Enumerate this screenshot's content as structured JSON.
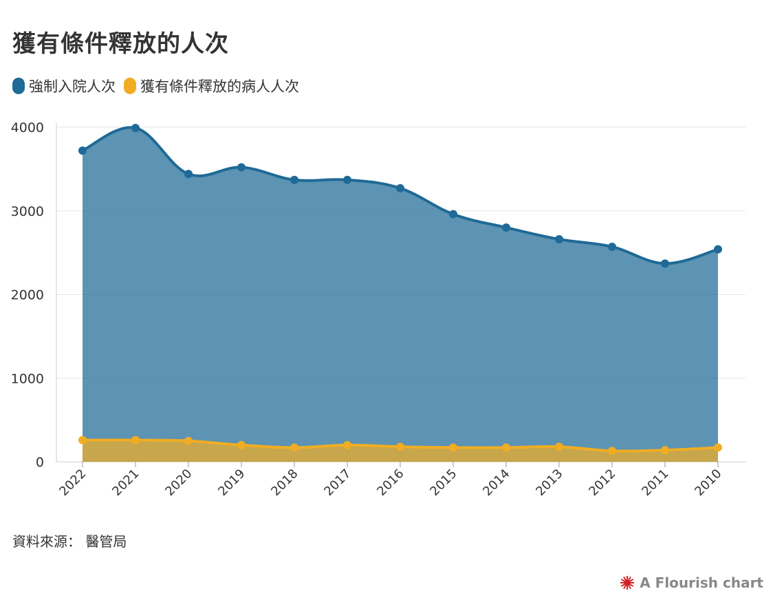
{
  "title": "獲有條件釋放的人次",
  "source": "資料來源： 醫管局",
  "credit": "A Flourish chart",
  "chart_data": {
    "type": "area",
    "title": "獲有條件釋放的人次",
    "xlabel": "",
    "ylabel": "",
    "x": [
      "2022",
      "2021",
      "2020",
      "2019",
      "2018",
      "2017",
      "2016",
      "2015",
      "2014",
      "2013",
      "2012",
      "2011",
      "2010"
    ],
    "series": [
      {
        "name": "強制入院人次",
        "color": "#1f6a96",
        "values": [
          3720,
          3990,
          3440,
          3520,
          3370,
          3370,
          3270,
          2960,
          2800,
          2660,
          2570,
          2370,
          2540
        ]
      },
      {
        "name": "獲有條件釋放的病人人次",
        "color": "#f0ad24",
        "values": [
          260,
          260,
          250,
          200,
          170,
          200,
          180,
          170,
          170,
          180,
          130,
          140,
          170
        ]
      }
    ],
    "y_ticks": [
      "0",
      "1000",
      "2000",
      "3000",
      "4000"
    ],
    "ylim": [
      0,
      4000
    ],
    "grid": true,
    "legend_position": "top-left"
  }
}
